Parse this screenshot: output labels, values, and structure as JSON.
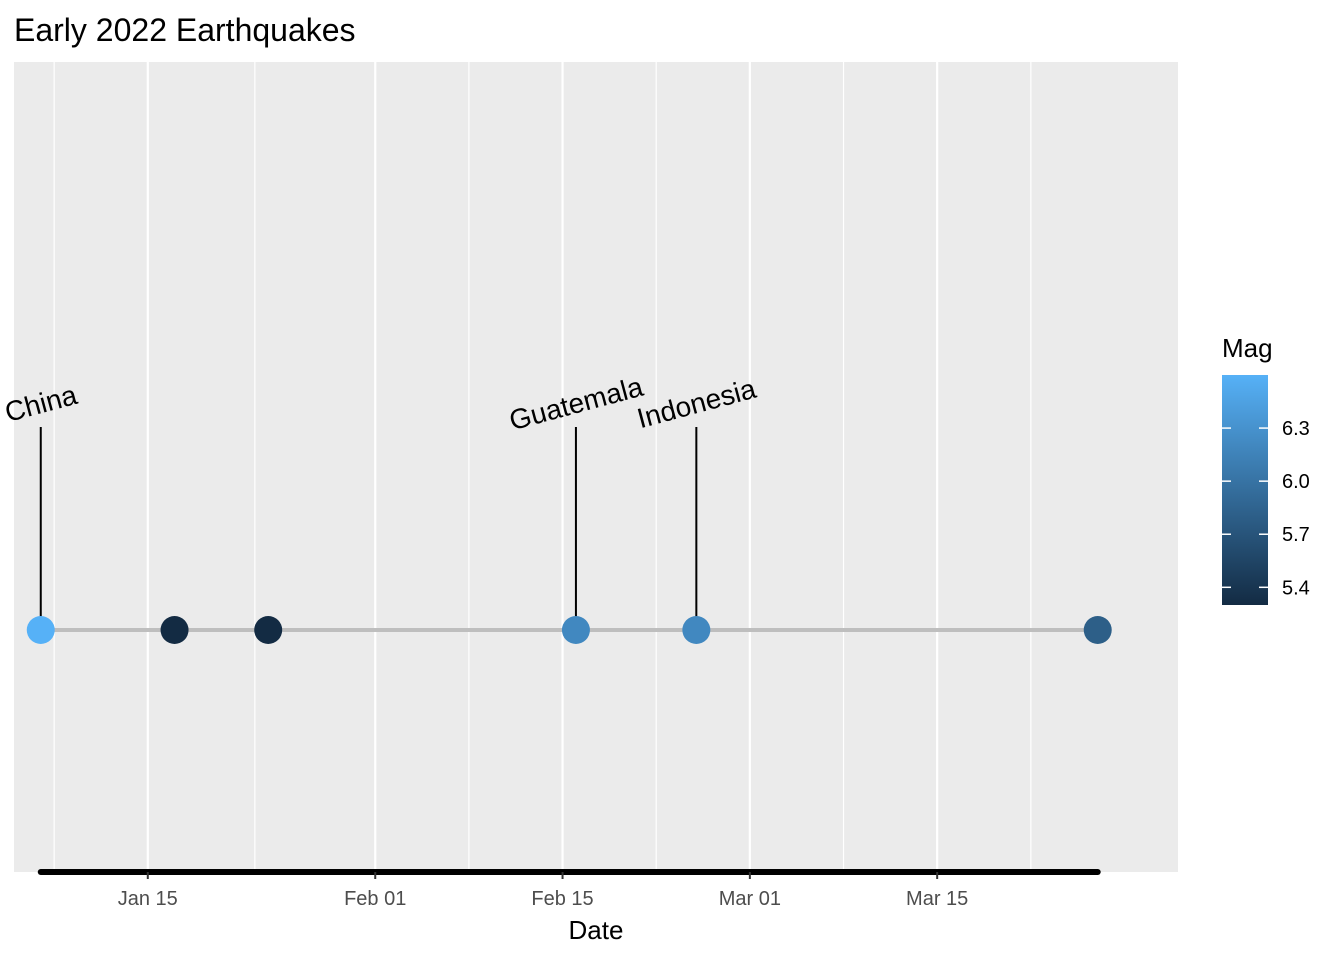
{
  "chart_data": {
    "type": "scatter",
    "title": "Early 2022 Earthquakes",
    "xlabel": "Date",
    "ylabel": "",
    "x_axis": {
      "type": "date",
      "range": [
        "2022-01-05",
        "2022-04-02"
      ],
      "ticks": [
        {
          "date": "2022-01-15",
          "label": "Jan 15"
        },
        {
          "date": "2022-02-01",
          "label": "Feb 01"
        },
        {
          "date": "2022-02-15",
          "label": "Feb 15"
        },
        {
          "date": "2022-03-01",
          "label": "Mar 01"
        },
        {
          "date": "2022-03-15",
          "label": "Mar 15"
        }
      ],
      "minor_gridlines": [
        "2022-01-08",
        "2022-01-23",
        "2022-02-08",
        "2022-02-22",
        "2022-03-08",
        "2022-03-22"
      ]
    },
    "grid": true,
    "points": [
      {
        "date": "2022-01-07",
        "mag": 6.6,
        "label": "China"
      },
      {
        "date": "2022-01-17",
        "mag": 5.3,
        "label": ""
      },
      {
        "date": "2022-01-24",
        "mag": 5.3,
        "label": ""
      },
      {
        "date": "2022-02-16",
        "mag": 6.2,
        "label": "Guatemala"
      },
      {
        "date": "2022-02-25",
        "mag": 6.2,
        "label": "Indonesia"
      },
      {
        "date": "2022-03-27",
        "mag": 5.8,
        "label": ""
      }
    ],
    "timeline_color": "#bebebe",
    "range_bar": [
      "2022-01-07",
      "2022-03-27"
    ],
    "legend": {
      "title": "Mag",
      "placement": "right",
      "type": "colorbar",
      "range": [
        5.3,
        6.6
      ],
      "ticks": [
        {
          "value": 5.4,
          "label": "5.4"
        },
        {
          "value": 5.7,
          "label": "5.7"
        },
        {
          "value": 6.0,
          "label": "6.0"
        },
        {
          "value": 6.3,
          "label": "6.3"
        }
      ],
      "low_color": "#132B43",
      "high_color": "#56B1F7"
    },
    "panel_color": "#ebebeb",
    "gridline_color": "#ffffff"
  }
}
